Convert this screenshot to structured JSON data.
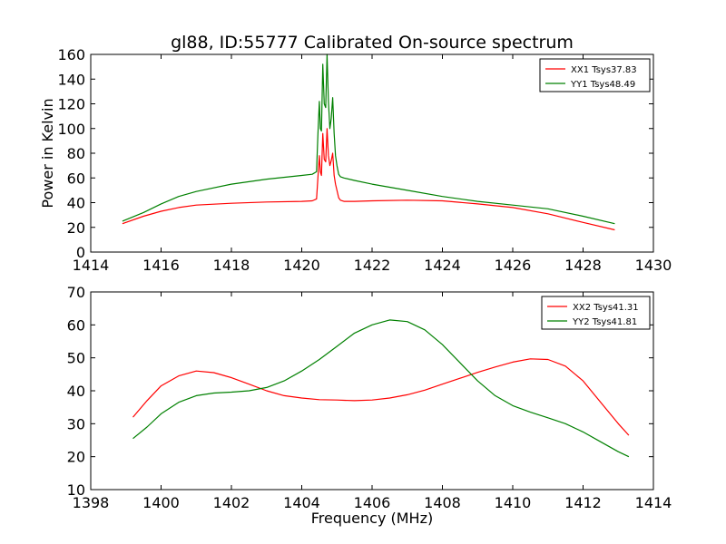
{
  "title": "gl88, ID:55777 Calibrated On-source spectrum",
  "colors": {
    "xx": "#ff0000",
    "yy": "#008000"
  },
  "chart_data": [
    {
      "type": "line",
      "xlim": [
        1414,
        1430
      ],
      "ylim": [
        0,
        160
      ],
      "xticks": [
        1414,
        1416,
        1418,
        1420,
        1422,
        1424,
        1426,
        1428,
        1430
      ],
      "yticks": [
        0,
        20,
        40,
        60,
        80,
        100,
        120,
        140,
        160
      ],
      "xlabel": "",
      "ylabel": "Power in Kelvin",
      "legend_position": "top-right",
      "series": [
        {
          "name": "XX1 Tsys37.83",
          "color": "#ff0000",
          "x": [
            1414.9,
            1415.5,
            1416.0,
            1416.5,
            1417.0,
            1418.0,
            1419.0,
            1420.0,
            1420.3,
            1420.42,
            1420.46,
            1420.5,
            1420.53,
            1420.56,
            1420.6,
            1420.64,
            1420.68,
            1420.72,
            1420.76,
            1420.8,
            1420.84,
            1420.88,
            1420.92,
            1420.96,
            1421.0,
            1421.05,
            1421.1,
            1421.2,
            1421.5,
            1422.0,
            1423.0,
            1424.0,
            1425.0,
            1426.0,
            1427.0,
            1428.0,
            1428.9
          ],
          "y": [
            23,
            29,
            33,
            36,
            38,
            39.5,
            40.5,
            41,
            41.5,
            43,
            60,
            78,
            65,
            62,
            96,
            75,
            73,
            100,
            78,
            70,
            74,
            80,
            62,
            55,
            50,
            44,
            42,
            41,
            41,
            41.5,
            42,
            41.5,
            39,
            36,
            31,
            24,
            18
          ]
        },
        {
          "name": "YY1 Tsys48.49",
          "color": "#008000",
          "x": [
            1414.9,
            1415.5,
            1416.0,
            1416.5,
            1417.0,
            1418.0,
            1419.0,
            1420.0,
            1420.3,
            1420.42,
            1420.46,
            1420.5,
            1420.53,
            1420.56,
            1420.6,
            1420.64,
            1420.68,
            1420.72,
            1420.76,
            1420.8,
            1420.84,
            1420.88,
            1420.92,
            1420.96,
            1421.0,
            1421.05,
            1421.1,
            1421.2,
            1421.5,
            1422.0,
            1423.0,
            1424.0,
            1425.0,
            1426.0,
            1427.0,
            1428.0,
            1428.9
          ],
          "y": [
            25,
            32,
            39,
            45,
            49,
            55,
            59,
            62,
            63,
            65,
            95,
            122,
            100,
            98,
            152,
            120,
            117,
            160,
            122,
            100,
            108,
            125,
            96,
            78,
            70,
            63,
            61,
            60,
            58,
            55,
            50,
            45,
            41,
            38,
            35,
            29,
            23
          ]
        }
      ]
    },
    {
      "type": "line",
      "xlim": [
        1398,
        1414
      ],
      "ylim": [
        10,
        70
      ],
      "xticks": [
        1398,
        1400,
        1402,
        1404,
        1406,
        1408,
        1410,
        1412,
        1414
      ],
      "yticks": [
        10,
        20,
        30,
        40,
        50,
        60,
        70
      ],
      "xlabel": "Frequency (MHz)",
      "ylabel": "",
      "legend_position": "top-right",
      "series": [
        {
          "name": "XX2 Tsys41.31",
          "color": "#ff0000",
          "x": [
            1399.2,
            1399.6,
            1400.0,
            1400.5,
            1401.0,
            1401.5,
            1402.0,
            1402.5,
            1403.0,
            1403.5,
            1404.0,
            1404.5,
            1405.0,
            1405.5,
            1406.0,
            1406.5,
            1407.0,
            1407.5,
            1408.0,
            1408.5,
            1409.0,
            1409.5,
            1410.0,
            1410.5,
            1411.0,
            1411.5,
            1412.0,
            1412.5,
            1413.0,
            1413.3
          ],
          "y": [
            32,
            37,
            41.5,
            44.5,
            46,
            45.5,
            44,
            42,
            40,
            38.5,
            37.8,
            37.3,
            37.2,
            37,
            37.2,
            37.8,
            38.8,
            40.2,
            42,
            43.8,
            45.6,
            47.2,
            48.7,
            49.7,
            49.5,
            47.5,
            43,
            36.5,
            30,
            26.5
          ]
        },
        {
          "name": "YY2 Tsys41.81",
          "color": "#008000",
          "x": [
            1399.2,
            1399.6,
            1400.0,
            1400.5,
            1401.0,
            1401.5,
            1402.0,
            1402.5,
            1403.0,
            1403.5,
            1404.0,
            1404.5,
            1405.0,
            1405.5,
            1406.0,
            1406.5,
            1407.0,
            1407.5,
            1408.0,
            1408.5,
            1409.0,
            1409.5,
            1410.0,
            1410.5,
            1411.0,
            1411.5,
            1412.0,
            1412.5,
            1413.0,
            1413.3
          ],
          "y": [
            25.5,
            29,
            33,
            36.5,
            38.5,
            39.3,
            39.6,
            40,
            41,
            43,
            46,
            49.5,
            53.5,
            57.5,
            60,
            61.5,
            61,
            58.5,
            54,
            48.5,
            43,
            38.5,
            35.5,
            33.5,
            31.8,
            30,
            27.5,
            24.5,
            21.5,
            20
          ]
        }
      ]
    }
  ]
}
